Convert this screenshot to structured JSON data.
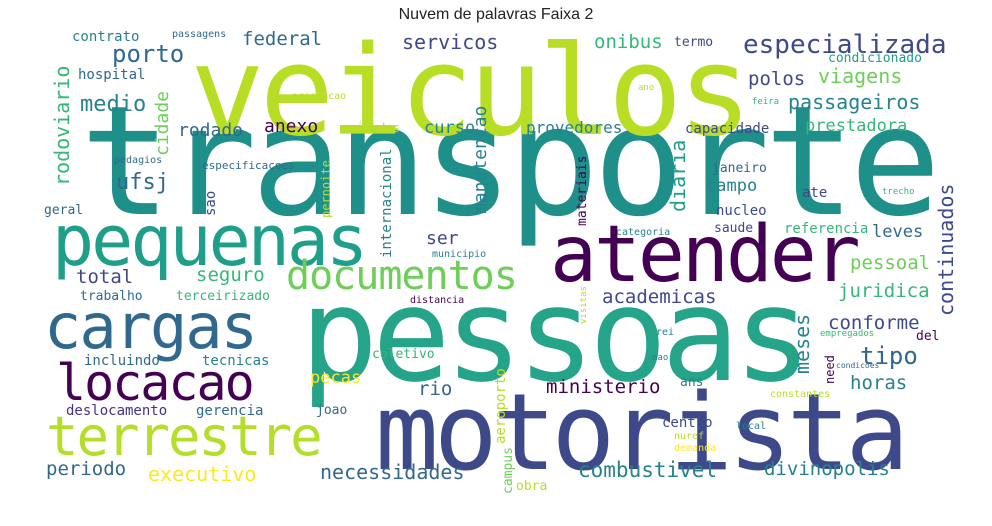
{
  "title": "Nuvem de palavras Faixa 2",
  "words": {
    "transporte": "transporte",
    "veiculos": "veiculos",
    "pessoas": "pessoas",
    "motorista": "motorista",
    "atender": "atender",
    "pequenas": "pequenas",
    "cargas": "cargas",
    "locacao": "locacao",
    "terrestre": "terrestre",
    "documentos": "documentos",
    "especializada": "especializada",
    "servicos": "servicos",
    "federal": "federal",
    "porto": "porto",
    "medio": "medio",
    "onibus": "onibus",
    "termo": "termo",
    "viagens": "viagens",
    "polos": "polos",
    "passageiros": "passageiros",
    "prestadora": "prestadora",
    "contrato": "contrato",
    "passagens": "passagens",
    "hospital": "hospital",
    "rodoviario": "rodoviario",
    "cidade": "cidade",
    "condicionado": "condicionado",
    "prestacao": "prestacao",
    "ano": "ano",
    "feira": "feira",
    "rodado": "rodado",
    "anexo": "anexo",
    "unidades": "unidades",
    "curso": "curso",
    "provedores": "provedores",
    "capacidade": "capacidade",
    "pedagios": "pedagios",
    "especificacoes": "especificacoes",
    "pernoite": "pernoite",
    "internacional": "internacional",
    "manutencao": "manutencao",
    "materiais": "materiais",
    "diaria": "diaria",
    "janeiro": "janeiro",
    "campo": "campo",
    "nucleo": "nucleo",
    "ate": "ate",
    "trecho": "trecho",
    "continuados": "continuados",
    "ufsj": "ufsj",
    "sao": "sao",
    "geral": "geral",
    "ser": "ser",
    "municipio": "municipio",
    "categoria": "categoria",
    "saude": "saude",
    "referencia": "referencia",
    "leves": "leves",
    "total": "total",
    "seguro": "seguro",
    "pessoal": "pessoal",
    "juridica": "juridica",
    "trabalho": "trabalho",
    "terceirizado": "terceirizado",
    "academicas": "academicas",
    "distancia": "distancia",
    "visitas": "visitas",
    "conforme": "conforme",
    "meses": "meses",
    "empregados": "empregados",
    "del": "del",
    "rei": "rei",
    "tipo": "tipo",
    "incluindo": "incluindo",
    "tecnicas": "tecnicas",
    "coletivo": "coletivo",
    "mao": "mao",
    "need": "need",
    "condicoes": "condicoes",
    "horas": "horas",
    "pecas": "pecas",
    "rio": "rio",
    "aeroporto": "aeroporto",
    "ministerio": "ministerio",
    "ans": "ans",
    "constantes": "constantes",
    "deslocamento": "deslocamento",
    "gerencia": "gerencia",
    "joao": "joao",
    "centro": "centro",
    "local": "local",
    "nuref": "nuref",
    "demanda": "demanda",
    "periodo": "periodo",
    "executivo": "executivo",
    "necessidades": "necessidades",
    "campus": "campus",
    "combustivel": "combustivel",
    "divinopolis": "divinopolis",
    "obra": "obra"
  },
  "colors": {
    "dark_purple": "#440154",
    "purple": "#46327e",
    "indigo": "#3e4989",
    "blue": "#31688e",
    "teal_blue": "#26828e",
    "teal": "#1f9e89",
    "green": "#35b779",
    "light_green": "#6ece58",
    "lime": "#b5de2b",
    "yellow": "#fde725"
  }
}
